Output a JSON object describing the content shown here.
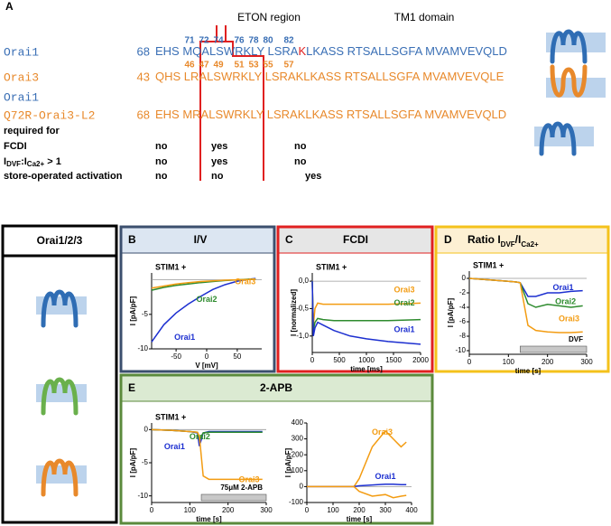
{
  "panel_a": {
    "label": "A",
    "region_labels": [
      "ETON region",
      "TM1 domain"
    ],
    "orai1_numbers": [
      "71",
      "72",
      "74",
      "76",
      "78",
      "80",
      "82"
    ],
    "orai3_numbers": [
      "46",
      "47",
      "49",
      "51",
      "53",
      "55",
      "57"
    ],
    "rows": [
      {
        "name": "Orai1",
        "start": "68",
        "seq": [
          "EHS MQALSWRKLY LSRA",
          "K",
          "LKASS RTSALLSGFA MVAMVEVQLD"
        ]
      },
      {
        "name": "Orai3",
        "start": "43",
        "seq": [
          "QHS LRALSWRKLY LSRAKLKASS RTSALLSGFA MVAMVEVQLE"
        ]
      },
      {
        "name": "Orai1",
        "start": "",
        "seq": []
      },
      {
        "name": "Q72R-Orai3-L2",
        "start": "68",
        "seq": [
          "EHS MRALSWRKLY LSRAKLKASS RTSALLSGFA MVAMVEVQLD"
        ]
      }
    ],
    "table": {
      "heading": "required for",
      "rows": [
        {
          "label": [
            "FCDI"
          ],
          "cells": [
            "no",
            "yes",
            "no"
          ]
        },
        {
          "label": [
            "I",
            "DVF",
            ":I",
            "Ca2+",
            " > 1"
          ],
          "cells": [
            "no",
            "yes",
            "no"
          ]
        },
        {
          "label": [
            "store-operated activation"
          ],
          "cells": [
            "no",
            "no",
            "yes"
          ]
        }
      ]
    }
  },
  "panels": {
    "orai": {
      "title": "Orai1/2/3"
    },
    "b": {
      "label": "B",
      "title": "I/V",
      "chart": {
        "type": "line",
        "annotation": "STIM1 +",
        "xlabel": "V [mV]",
        "ylabel": "I [pA/pF]",
        "xlim": [
          -90,
          90
        ],
        "ylim": [
          -10,
          1
        ],
        "xticks": [
          -50,
          0,
          50
        ],
        "yticks": [
          -10,
          -5
        ],
        "x": [
          -90,
          -70,
          -50,
          -30,
          -10,
          10,
          30,
          50,
          70,
          80
        ],
        "series": [
          {
            "name": "Orai1",
            "color": "#1c2fd0",
            "values": [
              -9,
              -6.5,
              -4.8,
              -3.5,
              -2.4,
              -1.4,
              -0.7,
              -0.2,
              0.1,
              0.2
            ]
          },
          {
            "name": "Orai2",
            "color": "#2e8b2e",
            "values": [
              -1.5,
              -1.1,
              -0.8,
              -0.6,
              -0.4,
              -0.25,
              -0.1,
              0,
              0.1,
              0.1
            ]
          },
          {
            "name": "Orai3",
            "color": "#f39c12",
            "values": [
              -1.2,
              -0.9,
              -0.6,
              -0.4,
              -0.25,
              -0.15,
              -0.05,
              0,
              0.05,
              0.1
            ]
          }
        ]
      }
    },
    "c": {
      "label": "C",
      "title": "FCDI",
      "chart": {
        "type": "line",
        "annotation": "STIM1 +",
        "xlabel": "time [ms]",
        "ylabel": "I [normalized]",
        "xlim": [
          0,
          2000
        ],
        "ylim": [
          -1.3,
          0.15
        ],
        "xticks": [
          0,
          500,
          1000,
          1500,
          2000
        ],
        "yticks": [
          {
            "value": 0,
            "label": "0,0"
          },
          {
            "value": -0.5,
            "label": "-0,5"
          },
          {
            "value": -1,
            "label": "-1,0"
          }
        ],
        "x": [
          0,
          20,
          50,
          100,
          200,
          400,
          700,
          1000,
          1400,
          2000
        ],
        "series": [
          {
            "name": "Orai3",
            "color": "#f39c12",
            "values": [
              0,
              -0.8,
              -0.5,
              -0.4,
              -0.42,
              -0.42,
              -0.42,
              -0.42,
              -0.42,
              -0.4
            ]
          },
          {
            "name": "Orai2",
            "color": "#2e8b2e",
            "values": [
              0,
              -0.9,
              -0.75,
              -0.68,
              -0.7,
              -0.72,
              -0.72,
              -0.72,
              -0.72,
              -0.7
            ]
          },
          {
            "name": "Orai1",
            "color": "#1c2fd0",
            "values": [
              0,
              -1.0,
              -0.85,
              -0.75,
              -0.8,
              -0.9,
              -1.0,
              -1.05,
              -1.1,
              -1.15
            ]
          }
        ]
      }
    },
    "d": {
      "label": "D",
      "title": [
        "Ratio I",
        "DVF",
        "/I",
        "Ca2+"
      ],
      "chart": {
        "type": "line",
        "annotation": "STIM1 +",
        "bar_label": "DVF",
        "xlabel": "time [s]",
        "ylabel": "I [pA/pF]",
        "xlim": [
          0,
          300
        ],
        "ylim": [
          -10.5,
          1
        ],
        "xticks": [
          0,
          100,
          200,
          300
        ],
        "yticks": [
          0,
          -2,
          -4,
          -6,
          -8,
          -10
        ],
        "x": [
          0,
          50,
          100,
          120,
          130,
          150,
          170,
          200,
          230,
          260,
          290
        ],
        "series": [
          {
            "name": "Orai1",
            "color": "#1c2fd0",
            "values": [
              0,
              -0.2,
              -0.4,
              -0.5,
              -0.6,
              -2.5,
              -2.5,
              -2.0,
              -2.0,
              -1.8,
              -1.7
            ]
          },
          {
            "name": "Orai2",
            "color": "#2e8b2e",
            "values": [
              0,
              -0.2,
              -0.4,
              -0.5,
              -0.6,
              -3.5,
              -4.0,
              -3.6,
              -3.8,
              -4.0,
              -3.8
            ]
          },
          {
            "name": "Orai3",
            "color": "#f39c12",
            "values": [
              0,
              -0.2,
              -0.4,
              -0.5,
              -0.6,
              -6.5,
              -7.2,
              -7.4,
              -7.5,
              -7.5,
              -7.4
            ]
          }
        ]
      }
    },
    "e": {
      "label": "E",
      "title": "2-APB",
      "charts": [
        {
          "type": "line",
          "annotation": "STIM1 +",
          "bar_label": "75μM 2-APB",
          "xlabel": "time [s]",
          "ylabel": "I [pA/pF]",
          "xlim": [
            0,
            300
          ],
          "ylim": [
            -11,
            1
          ],
          "xticks": [
            0,
            100,
            200,
            300
          ],
          "yticks": [
            -10,
            -5,
            0
          ],
          "x": [
            0,
            50,
            100,
            120,
            125,
            135,
            150,
            200,
            250,
            290
          ],
          "series": [
            {
              "name": "Orai1",
              "color": "#1c2fd0",
              "values": [
                0,
                -0.1,
                -0.3,
                -0.5,
                -2.5,
                -0.5,
                -0.3,
                -0.3,
                -0.3,
                -0.3
              ]
            },
            {
              "name": "Orai2",
              "color": "#2e8b2e",
              "values": [
                0,
                -0.1,
                -0.3,
                -0.4,
                -1.5,
                -0.5,
                -0.4,
                -0.4,
                -0.4,
                -0.4
              ]
            },
            {
              "name": "Orai3",
              "color": "#f39c12",
              "values": [
                0,
                -0.1,
                -0.3,
                -0.4,
                -1.0,
                -7,
                -7.5,
                -7.5,
                -7.5,
                -7.5
              ]
            }
          ]
        },
        {
          "type": "line",
          "xlabel": "time [s]",
          "ylabel": "I [pA/pF]",
          "xlim": [
            0,
            400
          ],
          "ylim": [
            -100,
            400
          ],
          "xticks": [
            0,
            100,
            200,
            300,
            400
          ],
          "yticks": [
            -100,
            0,
            100,
            200,
            300,
            400
          ],
          "x": [
            0,
            100,
            180,
            200,
            250,
            300,
            330,
            360,
            380
          ],
          "series": [
            {
              "name": "Orai3",
              "color": "#f39c12",
              "values": [
                0,
                0,
                0,
                50,
                250,
                350,
                300,
                250,
                280
              ]
            },
            {
              "name": "Orai1",
              "color": "#1c2fd0",
              "values": [
                0,
                0,
                0,
                5,
                10,
                15,
                15,
                12,
                12
              ]
            },
            {
              "name": null,
              "color": "#f39c12",
              "values": [
                0,
                0,
                0,
                -30,
                -60,
                -50,
                -70,
                -60,
                -55
              ]
            }
          ]
        }
      ]
    }
  }
}
